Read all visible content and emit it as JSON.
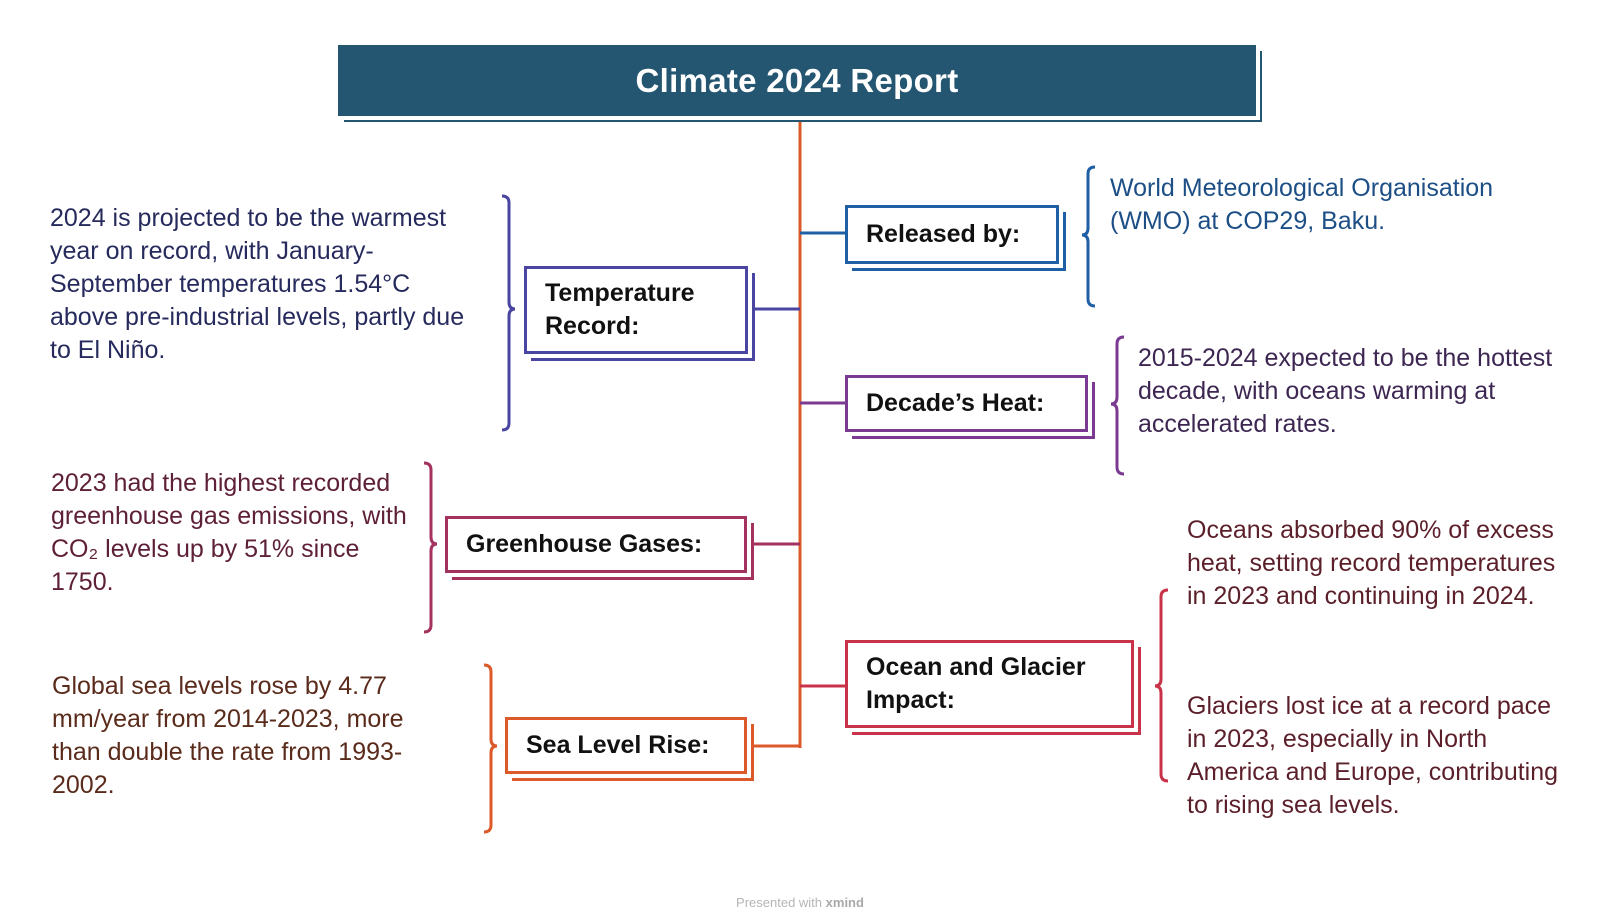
{
  "title": "Climate 2024 Report",
  "colors": {
    "title_bg": "#245571",
    "trunk": "#dc5a2a",
    "temperature": "#4a45a0",
    "greenhouse": "#a3325e",
    "sea": "#dc5a2a",
    "released": "#1f5fa6",
    "decade": "#7b3a92",
    "ocean": "#c9334a"
  },
  "left_topics": [
    {
      "label": "Temperature Record:",
      "detail": "2024 is projected to be the warmest year on record, with January-September temperatures 1.54°C above pre-industrial levels, partly due to El Niño."
    },
    {
      "label": "Greenhouse Gases:",
      "detail": "2023 had the highest recorded greenhouse gas emissions, with CO₂ levels up by 51% since 1750."
    },
    {
      "label": "Sea Level Rise:",
      "detail": "Global sea levels rose by 4.77 mm/year from 2014-2023, more than double the rate from 1993-2002."
    }
  ],
  "right_topics": [
    {
      "label": "Released by:",
      "detail": "World Meteorological Organisation (WMO) at COP29, Baku."
    },
    {
      "label": "Decade’s Heat:",
      "detail": "2015-2024 expected to be the hottest decade, with oceans warming at accelerated rates."
    },
    {
      "label": "Ocean and Glacier Impact:",
      "details": [
        "Oceans absorbed 90% of excess heat, setting record temperatures in 2023 and continuing in 2024.",
        "Glaciers lost ice at a record pace in 2023, especially in North America and Europe, contributing to rising sea levels."
      ]
    }
  ],
  "footer": {
    "prefix": "Presented with",
    "brand": "xmind"
  }
}
